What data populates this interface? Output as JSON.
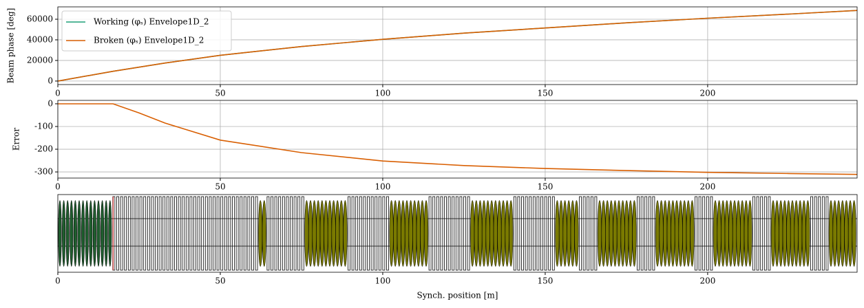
{
  "chart_data": [
    {
      "type": "line",
      "ylabel": "Beam phase [deg]",
      "x": [
        0,
        17,
        25,
        33,
        50,
        75,
        100,
        125,
        150,
        175,
        200,
        225,
        246
      ],
      "series": [
        {
          "name": "Working (φₛ) Envelope1D_2",
          "color": "#1b9e77",
          "values": [
            0,
            9500,
            13500,
            17500,
            25000,
            33500,
            40500,
            46500,
            51500,
            56500,
            61000,
            65000,
            68500
          ]
        },
        {
          "name": "Broken (φₛ) Envelope1D_2",
          "color": "#d95f02",
          "values": [
            0,
            9500,
            13500,
            17500,
            25000,
            33500,
            40500,
            46500,
            51500,
            56500,
            61000,
            65000,
            68500
          ]
        }
      ],
      "xlim": [
        0,
        246
      ],
      "xticks": [
        0,
        50,
        100,
        150,
        200
      ],
      "ylim": [
        -3400,
        72000
      ],
      "yticks": [
        0,
        20000,
        40000,
        60000
      ],
      "grid": true,
      "legend": "upper left"
    },
    {
      "type": "line",
      "ylabel": "Error",
      "x": [
        0,
        17,
        25,
        33,
        50,
        75,
        100,
        125,
        150,
        175,
        200,
        225,
        246
      ],
      "series": [
        {
          "color": "#d95f02",
          "values": [
            0,
            0,
            -40,
            -85,
            -160,
            -215,
            -252,
            -272,
            -285,
            -294,
            -302,
            -307,
            -311
          ]
        }
      ],
      "xlim": [
        0,
        246
      ],
      "xticks": [
        0,
        50,
        100,
        150,
        200
      ],
      "ylim": [
        -327,
        15
      ],
      "yticks": [
        0,
        -100,
        -200,
        -300
      ],
      "grid": true
    },
    {
      "type": "lattice",
      "xlabel": "Synch. position [m]",
      "xlim": [
        0,
        246
      ],
      "xticks": [
        0,
        50,
        100,
        150,
        200
      ]
    }
  ]
}
